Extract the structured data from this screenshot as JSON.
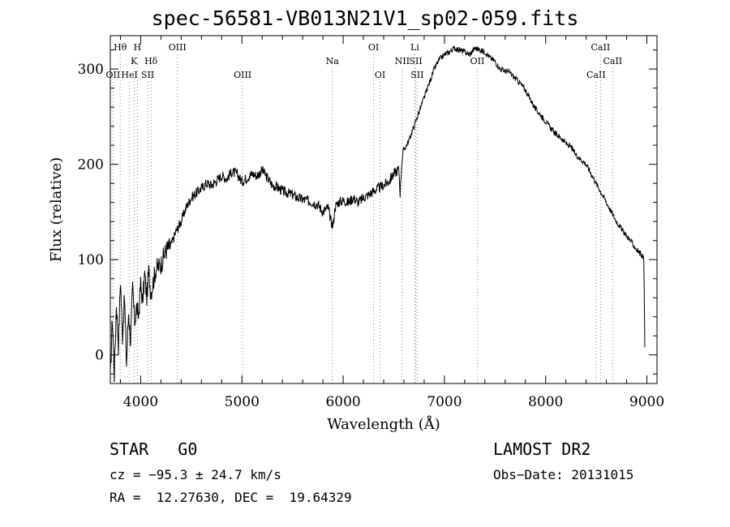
{
  "chart_data": {
    "type": "line",
    "title": "spec-56581-VB013N21V1_sp02-059.fits",
    "xlabel": "Wavelength (Å)",
    "ylabel": "Flux (relative)",
    "xlim": [
      3700,
      9100
    ],
    "ylim": [
      -30,
      335
    ],
    "xticks": [
      4000,
      5000,
      6000,
      7000,
      8000,
      9000
    ],
    "yticks": [
      0,
      100,
      200,
      300
    ],
    "grid": false,
    "series": [
      {
        "x": [
          3700,
          3720,
          3740,
          3760,
          3780,
          3800,
          3820,
          3840,
          3860,
          3880,
          3900,
          3920,
          3940,
          3960,
          3980,
          4000,
          4020,
          4040,
          4060,
          4080,
          4100,
          4150,
          4200,
          4250,
          4300,
          4350,
          4400,
          4450,
          4500,
          4550,
          4600,
          4650,
          4700,
          4750,
          4800,
          4850,
          4900,
          4950,
          5000,
          5050,
          5100,
          5150,
          5200,
          5250,
          5300,
          5350,
          5400,
          5450,
          5500,
          5550,
          5600,
          5650,
          5700,
          5750,
          5800,
          5850,
          5880,
          5900,
          5920,
          5950,
          6000,
          6050,
          6100,
          6150,
          6200,
          6250,
          6300,
          6350,
          6400,
          6450,
          6500,
          6550,
          6563,
          6580,
          6600,
          6650,
          6700,
          6750,
          6800,
          6850,
          6900,
          6950,
          7000,
          7050,
          7100,
          7150,
          7200,
          7250,
          7300,
          7350,
          7400,
          7450,
          7500,
          7550,
          7600,
          7650,
          7700,
          7750,
          7800,
          7850,
          7900,
          7950,
          8000,
          8050,
          8100,
          8150,
          8200,
          8250,
          8300,
          8350,
          8400,
          8450,
          8500,
          8550,
          8600,
          8650,
          8700,
          8750,
          8800,
          8850,
          8900,
          8950,
          8970,
          8980
        ],
        "y": [
          -25,
          40,
          -20,
          55,
          10,
          80,
          20,
          60,
          -10,
          45,
          15,
          70,
          35,
          50,
          40,
          75,
          55,
          85,
          60,
          88,
          65,
          90,
          95,
          110,
          115,
          130,
          140,
          155,
          165,
          170,
          175,
          180,
          178,
          183,
          188,
          185,
          192,
          190,
          182,
          186,
          190,
          188,
          194,
          186,
          178,
          176,
          172,
          170,
          168,
          165,
          163,
          162,
          160,
          158,
          150,
          155,
          140,
          135,
          155,
          160,
          162,
          160,
          165,
          160,
          165,
          168,
          172,
          175,
          178,
          182,
          190,
          195,
          170,
          205,
          215,
          225,
          240,
          255,
          270,
          285,
          300,
          310,
          315,
          318,
          322,
          320,
          318,
          315,
          322,
          320,
          318,
          312,
          308,
          300,
          298,
          296,
          290,
          285,
          278,
          268,
          258,
          252,
          245,
          238,
          232,
          228,
          222,
          218,
          210,
          205,
          200,
          190,
          180,
          170,
          160,
          150,
          140,
          132,
          125,
          118,
          110,
          105,
          100,
          8
        ]
      }
    ],
    "lines": [
      {
        "label": "OII",
        "x": 3727,
        "row": 3
      },
      {
        "label": "Hθ",
        "x": 3798,
        "row": 1
      },
      {
        "label": "HeI",
        "x": 3889,
        "row": 3
      },
      {
        "label": "K",
        "x": 3934,
        "row": 2
      },
      {
        "label": "H",
        "x": 3968,
        "row": 1
      },
      {
        "label": "SII",
        "x": 4069,
        "row": 3
      },
      {
        "label": "Hδ",
        "x": 4102,
        "row": 2
      },
      {
        "label": "OIII",
        "x": 4363,
        "row": 1
      },
      {
        "label": "OIII",
        "x": 5007,
        "row": 3
      },
      {
        "label": "Na",
        "x": 5893,
        "row": 2
      },
      {
        "label": "OI",
        "x": 6300,
        "row": 1
      },
      {
        "label": "OI",
        "x": 6364,
        "row": 3
      },
      {
        "label": "NII",
        "x": 6584,
        "row": 2
      },
      {
        "label": "Li",
        "x": 6708,
        "row": 1
      },
      {
        "label": "SII",
        "x": 6717,
        "row": 2
      },
      {
        "label": "SII",
        "x": 6731,
        "row": 3
      },
      {
        "label": "OII",
        "x": 7325,
        "row": 2
      },
      {
        "label": "CaII",
        "x": 8498,
        "row": 3
      },
      {
        "label": "CaII",
        "x": 8542,
        "row": 1
      },
      {
        "label": "CaII",
        "x": 8662,
        "row": 2
      }
    ]
  },
  "info": {
    "class": "STAR   G0",
    "survey": "LAMOST DR2",
    "cz": "cz = −95.3 ± 24.7 km/s",
    "obs_date": "Obs−Date: 20131015",
    "coords": "RA =  12.27630, DEC =  19.64329"
  }
}
